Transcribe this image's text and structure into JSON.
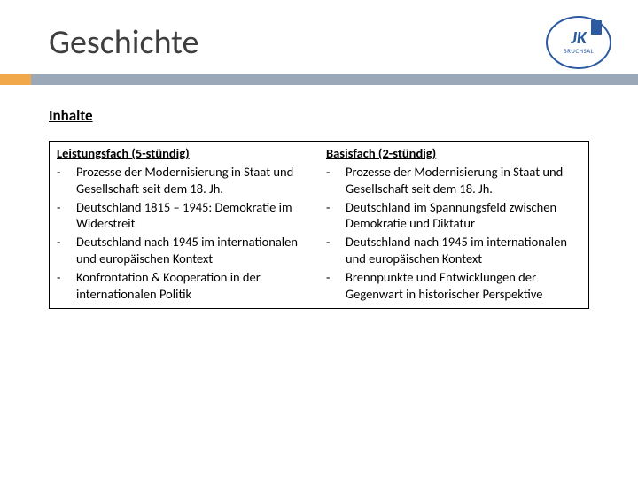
{
  "page": {
    "title": "Geschichte",
    "logo_main": "JK",
    "logo_sub": "BRUCHSAL"
  },
  "accent": {
    "box_color": "#f0a84a",
    "line_color": "#9aa8b8"
  },
  "section": {
    "heading": "Inhalte",
    "columns": [
      {
        "header": "Leistungsfach (5-stündig)",
        "items": [
          "Prozesse der Modernisierung in Staat und Gesellschaft seit dem 18. Jh.",
          "Deutschland 1815 – 1945: Demokratie im Widerstreit",
          "Deutschland nach 1945 im internationalen und europäischen Kontext",
          "Konfrontation & Kooperation in der internationalen Politik"
        ]
      },
      {
        "header": "Basisfach (2-stündig)",
        "items": [
          "Prozesse der Modernisierung in Staat und Gesellschaft seit dem 18. Jh.",
          "Deutschland im Spannungsfeld zwischen Demokratie und Diktatur",
          "Deutschland nach 1945 im internationalen und europäischen Kontext",
          "Brennpunkte und Entwicklungen der Gegenwart in historischer Perspektive"
        ]
      }
    ]
  }
}
